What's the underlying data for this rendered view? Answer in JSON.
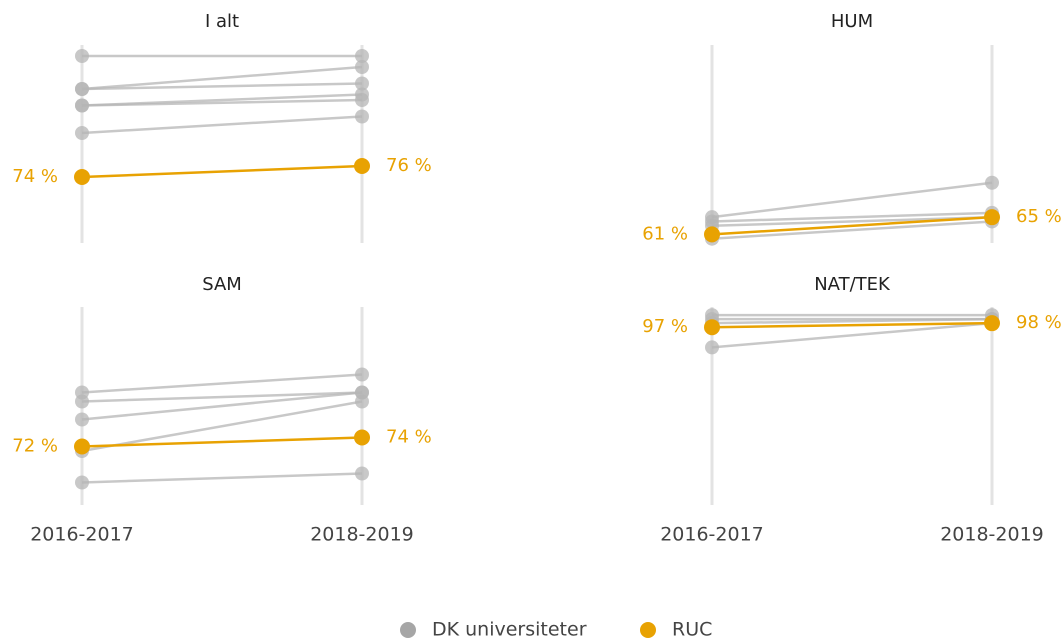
{
  "chart_data": [
    {
      "type": "line",
      "title": "I alt",
      "ylim": [
        62,
        98
      ],
      "series": [
        {
          "color": "#b5b5b5",
          "values": [
            96,
            96
          ]
        },
        {
          "color": "#b5b5b5",
          "values": [
            90,
            94
          ]
        },
        {
          "color": "#b5b5b5",
          "values": [
            90,
            91
          ]
        },
        {
          "color": "#b5b5b5",
          "values": [
            87,
            89
          ]
        },
        {
          "color": "#b5b5b5",
          "values": [
            87,
            88
          ]
        },
        {
          "color": "#b5b5b5",
          "values": [
            82,
            85
          ]
        },
        {
          "color": "#e8a202",
          "values": [
            74,
            76
          ],
          "value_labels": [
            "74 %",
            "76 %"
          ]
        }
      ]
    },
    {
      "type": "line",
      "title": "HUM",
      "ylim": [
        59,
        105
      ],
      "series": [
        {
          "color": "#b5b5b5",
          "values": [
            65,
            73
          ]
        },
        {
          "color": "#b5b5b5",
          "values": [
            64,
            66
          ]
        },
        {
          "color": "#b5b5b5",
          "values": [
            63,
            65
          ]
        },
        {
          "color": "#b5b5b5",
          "values": [
            60,
            64
          ]
        },
        {
          "color": "#e8a202",
          "values": [
            61,
            65
          ],
          "value_labels": [
            "61 %",
            "65 %"
          ]
        }
      ]
    },
    {
      "type": "line",
      "title": "SAM",
      "ylim": [
        59,
        103
      ],
      "categories": [
        "2016-2017",
        "2018-2019"
      ],
      "series": [
        {
          "color": "#b5b5b5",
          "values": [
            84,
            88
          ]
        },
        {
          "color": "#b5b5b5",
          "values": [
            82,
            84
          ]
        },
        {
          "color": "#b5b5b5",
          "values": [
            78,
            84
          ]
        },
        {
          "color": "#b5b5b5",
          "values": [
            71,
            82
          ]
        },
        {
          "color": "#b5b5b5",
          "values": [
            64,
            66
          ]
        },
        {
          "color": "#e8a202",
          "values": [
            72,
            74
          ],
          "value_labels": [
            "72 %",
            "74 %"
          ]
        }
      ]
    },
    {
      "type": "line",
      "title": "NAT/TEK",
      "ylim": [
        53,
        102
      ],
      "categories": [
        "2016-2017",
        "2018-2019"
      ],
      "series": [
        {
          "color": "#b5b5b5",
          "values": [
            100,
            100
          ]
        },
        {
          "color": "#b5b5b5",
          "values": [
            99,
            99
          ]
        },
        {
          "color": "#b5b5b5",
          "values": [
            98,
            99
          ]
        },
        {
          "color": "#b5b5b5",
          "values": [
            92,
            98
          ]
        },
        {
          "color": "#e8a202",
          "values": [
            97,
            98
          ],
          "value_labels": [
            "97 %",
            "98 %"
          ]
        }
      ]
    }
  ],
  "legend": [
    {
      "name": "DK universiteter",
      "color": "#a6a6a6"
    },
    {
      "name": "RUC",
      "color": "#e8a202"
    }
  ]
}
